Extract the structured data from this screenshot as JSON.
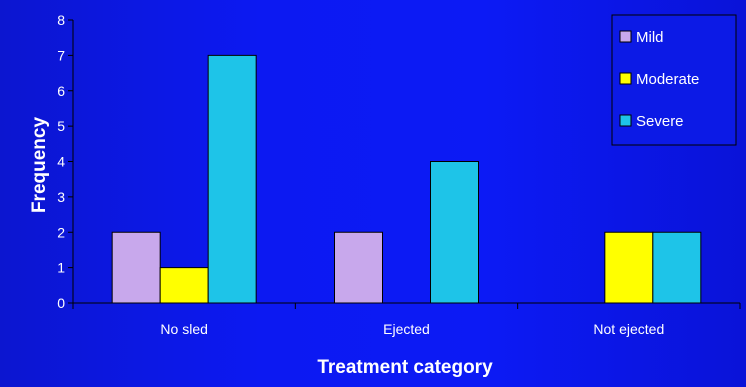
{
  "chart_data": {
    "type": "bar",
    "title": "",
    "xlabel": "Treatment category",
    "ylabel": "Frequency",
    "categories": [
      "No sled",
      "Ejected",
      "Not ejected"
    ],
    "ylim": [
      0,
      8
    ],
    "yticks": [
      0,
      1,
      2,
      3,
      4,
      5,
      6,
      7,
      8
    ],
    "grid": false,
    "legend_position": "top-right",
    "series": [
      {
        "name": "Mild",
        "color": "#c8a8ec",
        "values": [
          2,
          2,
          0
        ]
      },
      {
        "name": "Moderate",
        "color": "#ffff00",
        "values": [
          1,
          0,
          2
        ]
      },
      {
        "name": "Severe",
        "color": "#1ec4e8",
        "values": [
          7,
          4,
          2
        ]
      }
    ]
  }
}
